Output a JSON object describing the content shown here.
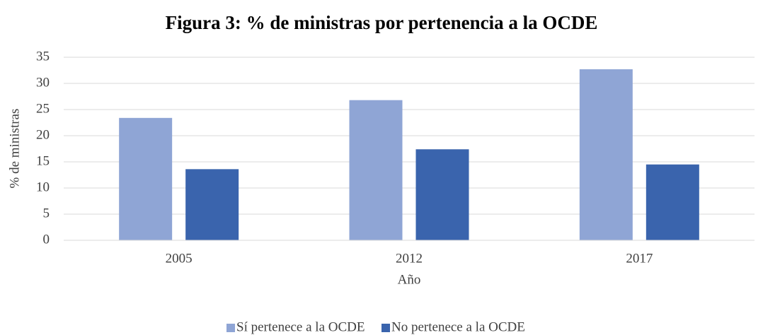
{
  "chart_data": {
    "type": "bar",
    "title": "Figura 3: % de ministras por pertenencia a la OCDE",
    "x_label": "Año",
    "y_label": "% de ministras",
    "categories": [
      "2005",
      "2012",
      "2017"
    ],
    "series": [
      {
        "name": "Sí pertenece a la OCDE",
        "color": "#8fa5d5",
        "values": [
          23.4,
          26.8,
          32.7
        ]
      },
      {
        "name": "No pertenece a la OCDE",
        "color": "#3a64ad",
        "values": [
          13.6,
          17.4,
          14.5
        ]
      }
    ],
    "ylim": [
      0,
      35
    ],
    "yticks": [
      0,
      5,
      10,
      15,
      20,
      25,
      30,
      35
    ],
    "grid": true,
    "legend": "bottom"
  }
}
